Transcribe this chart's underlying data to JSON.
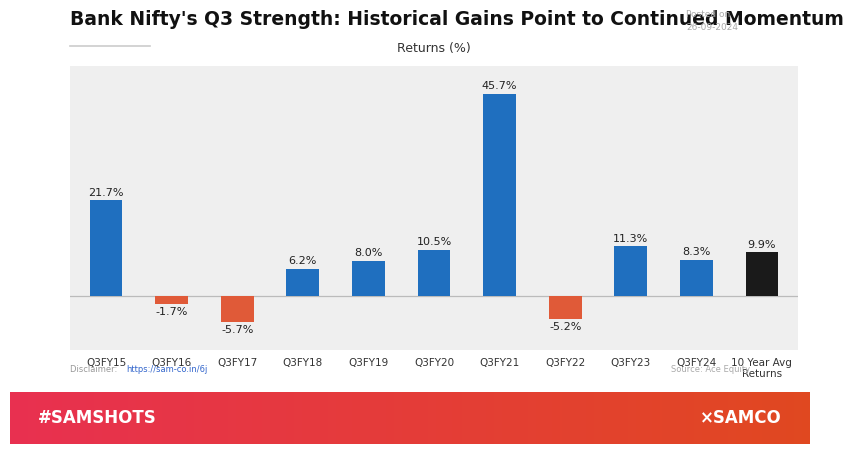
{
  "title": "Bank Nifty's Q3 Strength: Historical Gains Point to Continued Momentum",
  "posted_on_line1": "Posted on",
  "posted_on_line2": "26-09-2024",
  "categories": [
    "Q3FY15",
    "Q3FY16",
    "Q3FY17",
    "Q3FY18",
    "Q3FY19",
    "Q3FY20",
    "Q3FY21",
    "Q3FY22",
    "Q3FY23",
    "Q3FY24",
    "10 Year Avg\nReturns"
  ],
  "values": [
    21.7,
    -1.7,
    -5.7,
    6.2,
    8.0,
    10.5,
    45.7,
    -5.2,
    11.3,
    8.3,
    9.9
  ],
  "bar_colors": [
    "#1f6fbf",
    "#e05a38",
    "#e05a38",
    "#1f6fbf",
    "#1f6fbf",
    "#1f6fbf",
    "#1f6fbf",
    "#e05a38",
    "#1f6fbf",
    "#1f6fbf",
    "#1a1a1a"
  ],
  "chart_bg": "#efefef",
  "page_bg": "#ffffff",
  "returns_label": "Returns (%)",
  "ylim": [
    -12,
    52
  ],
  "disclaimer_text": "Disclaimer: ",
  "disclaimer_url": "https://sam-co.in/6j",
  "source": "Source: Ace Equity",
  "footer_left": "#SAMSHOTS",
  "footer_right": "×SAMCO",
  "footer_color_left": "#e83050",
  "footer_color_right": "#e04820",
  "title_fontsize": 13.5,
  "bar_label_fontsize": 8,
  "tick_fontsize": 7.5,
  "returns_label_fontsize": 9,
  "footer_fontsize": 12,
  "posted_fontsize": 6.5,
  "disclaimer_fontsize": 6,
  "separator_color": "#cccccc"
}
